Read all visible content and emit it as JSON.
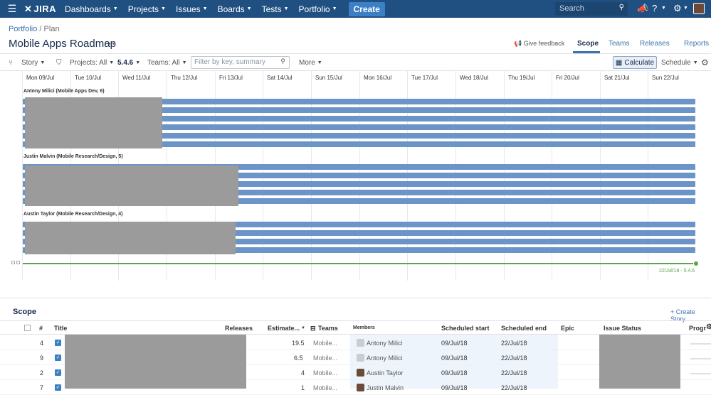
{
  "topnav": {
    "logo": "JIRA",
    "items": [
      "Dashboards",
      "Projects",
      "Issues",
      "Boards",
      "Tests",
      "Portfolio"
    ],
    "create": "Create",
    "search_placeholder": "Search"
  },
  "breadcrumb": {
    "parent": "Portfolio",
    "sep": "/",
    "current": "Plan"
  },
  "page_title": "Mobile Apps Roadmap",
  "header_actions": {
    "feedback": "Give feedback",
    "tabs": [
      "Scope",
      "Teams",
      "Releases",
      "Reports"
    ],
    "active_tab": "Scope"
  },
  "toolbar": {
    "story": "Story",
    "projects": "Projects: All",
    "release": "5.4.6",
    "teams": "Teams: All",
    "filter_placeholder": "Filter by key, summary",
    "more": "More",
    "calculate": "Calculate",
    "schedule": "Schedule"
  },
  "timeline": {
    "days": [
      "Mon 09/Jul",
      "Tue 10/Jul",
      "Wed 11/Jul",
      "Thu 12/Jul",
      "Fri 13/Jul",
      "Sat 14/Jul",
      "Sun 15/Jul",
      "Mon 16/Jul",
      "Tue 17/Jul",
      "Wed 18/Jul",
      "Thu 19/Jul",
      "Fri 20/Jul",
      "Sat 21/Jul",
      "Sun 22/Jul"
    ],
    "groups": [
      {
        "label": "Antony Milici (Mobile Apps Dev, 6)"
      },
      {
        "label": "Justin Malvin (Mobile Research/Design, 5)"
      },
      {
        "label": "Austin Taylor (Mobile Research/Design, 4)"
      }
    ],
    "release_label": "22/Jul/18 - 5.4.6"
  },
  "scope": {
    "title": "Scope",
    "create_story": "+ Create Story",
    "columns": {
      "num": "#",
      "title": "Title",
      "releases": "Releases",
      "estimate": "Estimate...",
      "teams": "Teams",
      "members": "Members",
      "scheduled_start": "Scheduled start",
      "scheduled_end": "Scheduled end",
      "epic": "Epic",
      "issue_status": "Issue Status",
      "progress": "Progr"
    },
    "rows": [
      {
        "num": "4",
        "estimate": "19.5",
        "team": "Mobile...",
        "member": "Antony Milici",
        "start": "09/Jul/18",
        "end": "22/Jul/18"
      },
      {
        "num": "9",
        "estimate": "6.5",
        "team": "Mobile...",
        "member": "Antony Milici",
        "start": "09/Jul/18",
        "end": "22/Jul/18"
      },
      {
        "num": "2",
        "estimate": "4",
        "team": "Mobile...",
        "member": "Austin Taylor",
        "start": "09/Jul/18",
        "end": "22/Jul/18"
      },
      {
        "num": "7",
        "estimate": "1",
        "team": "Mobile...",
        "member": "Justin Malvin",
        "start": "09/Jul/18",
        "end": "22/Jul/18"
      }
    ]
  }
}
